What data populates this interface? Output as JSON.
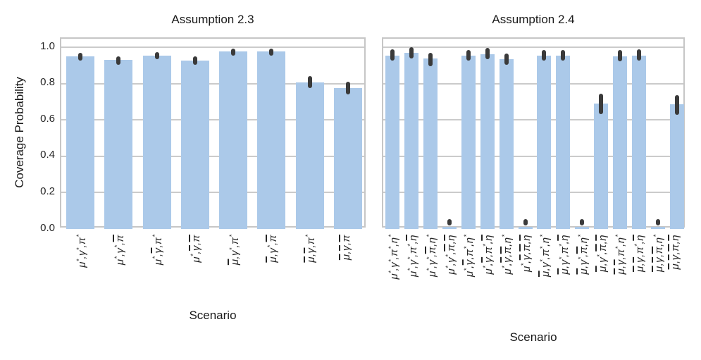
{
  "figure": {
    "ylabel": "Coverage Probability",
    "colors": {
      "bar_fill": "#abc9e9",
      "error_bar": "#3a3a3a",
      "grid_line": "#cbcbcb",
      "panel_border": "#c6c6c6",
      "text": "#262626"
    }
  },
  "chart_data": [
    {
      "type": "bar",
      "title": "Assumption 2.3",
      "xlabel": "Scenario",
      "ylabel": "Coverage Probability",
      "ylim": [
        0.0,
        1.047
      ],
      "yticks": [
        "0.0",
        "0.2",
        "0.4",
        "0.6",
        "0.8",
        "1.0"
      ],
      "grid": true,
      "legend": "none",
      "categories": [
        "μ*,γ*,π*",
        "μ*,γ*,π̄",
        "μ*,γ̄,π*",
        "μ*,γ̄,π̄",
        "μ̄,γ*,π*",
        "μ̄,γ*,π̄",
        "μ̄,γ̄,π*",
        "μ̄,γ̄,π̄"
      ],
      "values": [
        0.95,
        0.93,
        0.952,
        0.928,
        0.975,
        0.975,
        0.805,
        0.775
      ],
      "error_low": [
        0.928,
        0.905,
        0.933,
        0.905,
        0.955,
        0.955,
        0.775,
        0.74
      ],
      "error_high": [
        0.97,
        0.95,
        0.972,
        0.95,
        0.993,
        0.993,
        0.84,
        0.812
      ]
    },
    {
      "type": "bar",
      "title": "Assumption 2.4",
      "xlabel": "Scenario",
      "ylabel": "Coverage Probability",
      "ylim": [
        0.0,
        1.047
      ],
      "yticks": [
        "0.0",
        "0.2",
        "0.4",
        "0.6",
        "0.8",
        "1.0"
      ],
      "grid": true,
      "legend": "none",
      "categories": [
        "μ*,γ*,π*,η*",
        "μ*,γ*,π*,η̄",
        "μ*,γ*,π̄,η*",
        "μ*,γ*,π̄,η̄",
        "μ*,γ̄,π*,η*",
        "μ*,γ̄,π*,η̄",
        "μ*,γ̄,π̄,η*",
        "μ*,γ̄,π̄,η̄",
        "μ̄,γ*,π*,η*",
        "μ̄,γ*,π*,η̄",
        "μ̄,γ*,π̄,η*",
        "μ̄,γ*,π̄,η̄",
        "μ̄,γ̄,π*,η*",
        "μ̄,γ̄,π*,η̄",
        "μ̄,γ̄,π̄,η*",
        "μ̄,γ̄,π̄,η̄"
      ],
      "values": [
        0.955,
        0.968,
        0.937,
        0.012,
        0.953,
        0.962,
        0.936,
        0.012,
        0.953,
        0.955,
        0.012,
        0.69,
        0.95,
        0.955,
        0.012,
        0.685
      ],
      "error_low": [
        0.925,
        0.938,
        0.895,
        0.02,
        0.925,
        0.935,
        0.903,
        0.02,
        0.925,
        0.928,
        0.02,
        0.633,
        0.922,
        0.928,
        0.02,
        0.628
      ],
      "error_high": [
        0.988,
        1.0,
        0.968,
        0.055,
        0.985,
        0.995,
        0.965,
        0.055,
        0.985,
        0.985,
        0.055,
        0.745,
        0.985,
        0.988,
        0.055,
        0.738
      ]
    }
  ]
}
